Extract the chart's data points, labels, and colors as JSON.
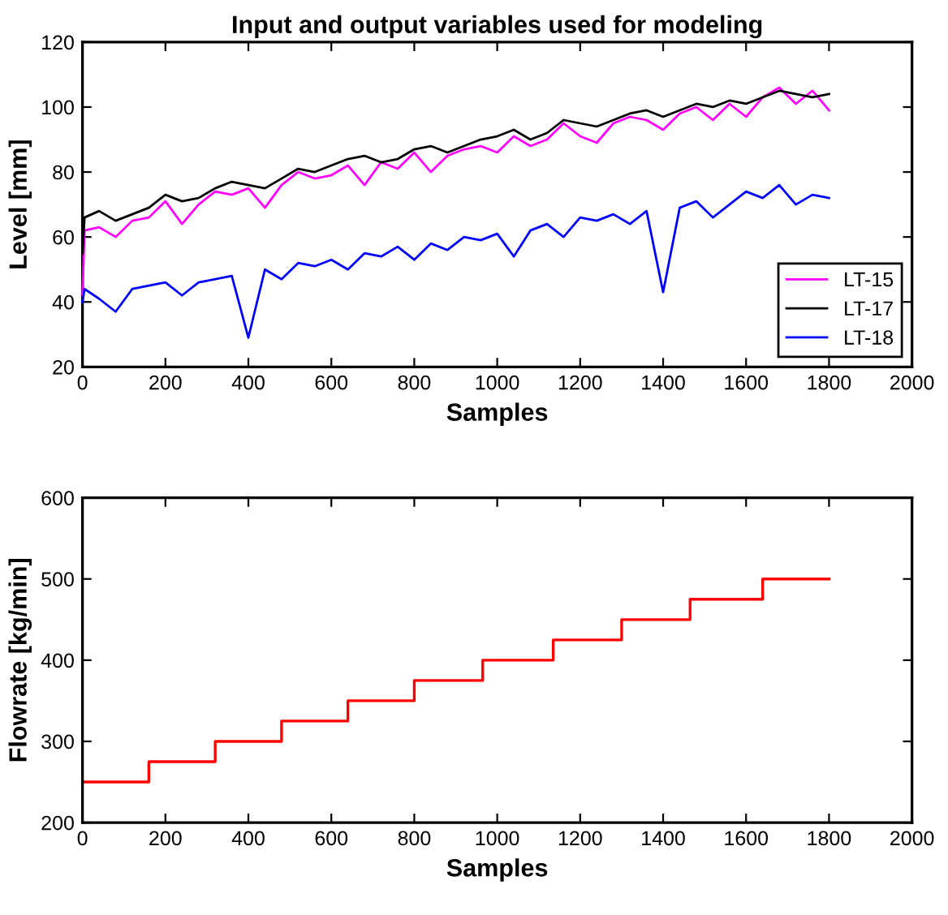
{
  "chart_data": [
    {
      "type": "line",
      "title": "Input and output variables used for modeling",
      "xlabel": "Samples",
      "ylabel": "Level [mm]",
      "x": [
        0,
        5,
        40,
        80,
        120,
        160,
        200,
        240,
        280,
        320,
        360,
        400,
        440,
        480,
        520,
        560,
        600,
        640,
        680,
        720,
        760,
        800,
        840,
        880,
        920,
        960,
        1000,
        1040,
        1080,
        1120,
        1160,
        1200,
        1240,
        1280,
        1320,
        1360,
        1400,
        1440,
        1480,
        1520,
        1560,
        1600,
        1640,
        1680,
        1720,
        1760,
        1800
      ],
      "series": [
        {
          "name": "LT-15",
          "color": "#ff00ff",
          "values": [
            42,
            62,
            63,
            60,
            65,
            66,
            71,
            64,
            70,
            74,
            73,
            75,
            69,
            76,
            80,
            78,
            79,
            82,
            76,
            83,
            81,
            86,
            80,
            85,
            87,
            88,
            86,
            91,
            88,
            90,
            95,
            91,
            89,
            95,
            97,
            96,
            93,
            98,
            100,
            96,
            101,
            97,
            103,
            106,
            101,
            105,
            99
          ]
        },
        {
          "name": "LT-17",
          "color": "#000000",
          "values": [
            55,
            66,
            68,
            65,
            67,
            69,
            73,
            71,
            72,
            75,
            77,
            76,
            75,
            78,
            81,
            80,
            82,
            84,
            85,
            83,
            84,
            87,
            88,
            86,
            88,
            90,
            91,
            93,
            90,
            92,
            96,
            95,
            94,
            96,
            98,
            99,
            97,
            99,
            101,
            100,
            102,
            101,
            103,
            105,
            104,
            103,
            104
          ]
        },
        {
          "name": "LT-18",
          "color": "#0000ff",
          "values": [
            40,
            44,
            41,
            37,
            44,
            45,
            46,
            42,
            46,
            47,
            48,
            29,
            50,
            47,
            52,
            51,
            53,
            50,
            55,
            54,
            57,
            53,
            58,
            56,
            60,
            59,
            61,
            54,
            62,
            64,
            60,
            66,
            65,
            67,
            64,
            68,
            43,
            69,
            71,
            66,
            70,
            74,
            72,
            76,
            70,
            73,
            72
          ]
        }
      ],
      "xlim": [
        0,
        2000
      ],
      "xticks": [
        0,
        200,
        400,
        600,
        800,
        1000,
        1200,
        1400,
        1600,
        1800,
        2000
      ],
      "ylim": [
        20,
        120
      ],
      "yticks": [
        20,
        40,
        60,
        80,
        100,
        120
      ],
      "legend": "bottom right",
      "grid": false
    },
    {
      "type": "step",
      "xlabel": "Samples",
      "ylabel": "Flowrate [kg/min]",
      "x": [
        0,
        160,
        320,
        480,
        640,
        800,
        965,
        1135,
        1300,
        1465,
        1640,
        1800
      ],
      "series": [
        {
          "color": "#ff0000",
          "values": [
            250,
            275,
            300,
            325,
            350,
            375,
            400,
            425,
            450,
            475,
            500,
            500
          ]
        }
      ],
      "xlim": [
        0,
        2000
      ],
      "xticks": [
        0,
        200,
        400,
        600,
        800,
        1000,
        1200,
        1400,
        1600,
        1800,
        2000
      ],
      "ylim": [
        200,
        600
      ],
      "yticks": [
        200,
        300,
        400,
        500,
        600
      ],
      "legend": false,
      "grid": false
    }
  ]
}
